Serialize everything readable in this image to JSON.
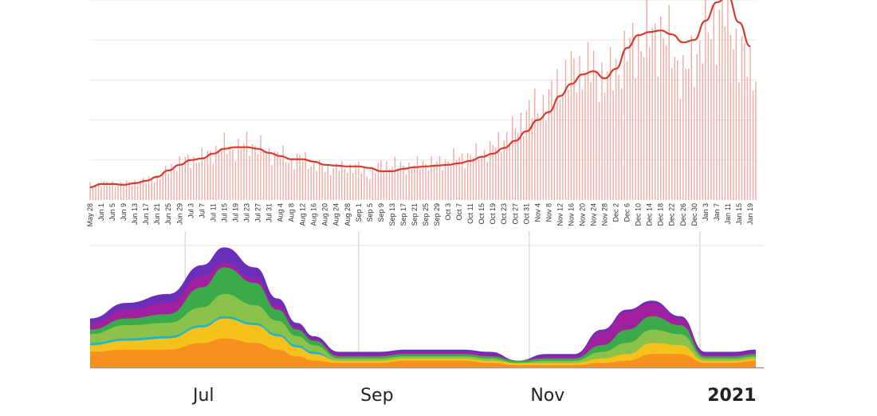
{
  "chart_data": [
    {
      "type": "bar",
      "grid": true,
      "ylim": [
        0,
        250
      ],
      "date_range": [
        "2020-05-28",
        "2021-01-21"
      ],
      "tick_labels": [
        "May 28",
        "Jun 1",
        "Jun 5",
        "Jun 9",
        "Jun 13",
        "Jun 17",
        "Jun 21",
        "Jun 25",
        "Jun 29",
        "Jul 3",
        "Jul 7",
        "Jul 11",
        "Jul 15",
        "Jul 19",
        "Jul 23",
        "Jul 27",
        "Jul 31",
        "Aug 4",
        "Aug 8",
        "Aug 12",
        "Aug 16",
        "Aug 20",
        "Aug 24",
        "Aug 28",
        "Sep 1",
        "Sep 5",
        "Sep 9",
        "Sep 13",
        "Sep 17",
        "Sep 21",
        "Sep 25",
        "Sep 29",
        "Oct 3",
        "Oct 7",
        "Oct 11",
        "Oct 15",
        "Oct 19",
        "Oct 23",
        "Oct 27",
        "Oct 31",
        "Nov 4",
        "Nov 8",
        "Nov 12",
        "Nov 16",
        "Nov 20",
        "Nov 24",
        "Nov 28",
        "Dec 2",
        "Dec 6",
        "Dec 10",
        "Dec 14",
        "Dec 18",
        "Dec 22",
        "Dec 26",
        "Dec 30",
        "Jan 3",
        "Jan 7",
        "Jan 11",
        "Jan 15",
        "Jan 19"
      ],
      "bar_color": "#f4a9a2",
      "line_color": "#d83a2c",
      "series": [
        {
          "kind": "bars",
          "x": [
            "2020-05-28",
            "2020-06-01",
            "2020-06-05",
            "2020-06-09",
            "2020-06-13",
            "2020-06-17",
            "2020-06-21",
            "2020-06-25",
            "2020-06-29",
            "2020-07-03",
            "2020-07-07",
            "2020-07-11",
            "2020-07-15",
            "2020-07-19",
            "2020-07-23",
            "2020-07-27",
            "2020-07-31",
            "2020-08-04",
            "2020-08-08",
            "2020-08-12",
            "2020-08-16",
            "2020-08-20",
            "2020-08-24",
            "2020-08-28",
            "2020-09-01",
            "2020-09-05",
            "2020-09-09",
            "2020-09-13",
            "2020-09-17",
            "2020-09-21",
            "2020-09-25",
            "2020-09-29",
            "2020-10-03",
            "2020-10-07",
            "2020-10-11",
            "2020-10-15",
            "2020-10-19",
            "2020-10-23",
            "2020-10-27",
            "2020-10-31",
            "2020-11-04",
            "2020-11-08",
            "2020-11-12",
            "2020-11-16",
            "2020-11-20",
            "2020-11-24",
            "2020-11-28",
            "2020-12-02",
            "2020-12-06",
            "2020-12-10",
            "2020-12-14",
            "2020-12-18",
            "2020-12-22",
            "2020-12-26",
            "2020-12-30",
            "2021-01-03",
            "2021-01-07",
            "2021-01-11",
            "2021-01-15",
            "2021-01-19"
          ],
          "values": [
            18,
            21,
            20,
            20,
            22,
            24,
            28,
            38,
            47,
            50,
            53,
            60,
            68,
            63,
            72,
            67,
            59,
            57,
            48,
            53,
            43,
            40,
            40,
            41,
            41,
            31,
            44,
            45,
            42,
            43,
            47,
            46,
            50,
            53,
            55,
            58,
            65,
            78,
            87,
            110,
            116,
            125,
            147,
            160,
            165,
            163,
            152,
            162,
            185,
            198,
            204,
            210,
            190,
            154,
            180,
            205,
            225,
            240,
            185,
            165
          ]
        },
        {
          "kind": "line",
          "x": [
            "2020-05-28",
            "2020-06-01",
            "2020-06-05",
            "2020-06-09",
            "2020-06-13",
            "2020-06-17",
            "2020-06-21",
            "2020-06-25",
            "2020-06-29",
            "2020-07-03",
            "2020-07-07",
            "2020-07-11",
            "2020-07-15",
            "2020-07-19",
            "2020-07-23",
            "2020-07-27",
            "2020-07-31",
            "2020-08-04",
            "2020-08-08",
            "2020-08-12",
            "2020-08-16",
            "2020-08-20",
            "2020-08-24",
            "2020-08-28",
            "2020-09-01",
            "2020-09-05",
            "2020-09-09",
            "2020-09-13",
            "2020-09-17",
            "2020-09-21",
            "2020-09-25",
            "2020-09-29",
            "2020-10-03",
            "2020-10-07",
            "2020-10-11",
            "2020-10-15",
            "2020-10-19",
            "2020-10-23",
            "2020-10-27",
            "2020-10-31",
            "2020-11-04",
            "2020-11-08",
            "2020-11-12",
            "2020-11-16",
            "2020-11-20",
            "2020-11-24",
            "2020-11-28",
            "2020-12-02",
            "2020-12-06",
            "2020-12-10",
            "2020-12-14",
            "2020-12-18",
            "2020-12-22",
            "2020-12-26",
            "2020-12-30",
            "2021-01-03",
            "2021-01-07",
            "2021-01-11",
            "2021-01-15",
            "2021-01-19"
          ],
          "values": [
            16,
            20,
            20,
            19,
            21,
            24,
            29,
            37,
            44,
            50,
            52,
            58,
            64,
            66,
            66,
            64,
            59,
            55,
            51,
            51,
            48,
            44,
            43,
            42,
            42,
            40,
            36,
            36,
            39,
            41,
            42,
            43,
            44,
            46,
            49,
            54,
            58,
            65,
            74,
            86,
            100,
            110,
            130,
            145,
            157,
            161,
            152,
            164,
            190,
            206,
            210,
            212,
            207,
            197,
            200,
            224,
            247,
            255,
            222,
            192
          ]
        }
      ]
    },
    {
      "type": "area",
      "stacked": true,
      "grid": true,
      "date_range": [
        "2020-05-28",
        "2021-01-21"
      ],
      "month_ticks": [
        "2020-07-01",
        "2020-09-01",
        "2020-11-01",
        "2021-01-01"
      ],
      "month_labels": [
        "Jul",
        "Sep",
        "Nov",
        "2021"
      ],
      "x": [
        "2020-05-28",
        "2020-06-10",
        "2020-06-25",
        "2020-07-07",
        "2020-07-15",
        "2020-07-26",
        "2020-08-03",
        "2020-08-10",
        "2020-08-16",
        "2020-08-25",
        "2020-09-08",
        "2020-09-18",
        "2020-09-28",
        "2020-10-08",
        "2020-10-18",
        "2020-10-28",
        "2020-11-07",
        "2020-11-17",
        "2020-11-27",
        "2020-12-06",
        "2020-12-15",
        "2020-12-25",
        "2021-01-03",
        "2021-01-13",
        "2021-01-21"
      ],
      "series": [
        {
          "color": "#f7901e",
          "values": [
            7,
            8,
            8,
            11,
            13,
            11,
            8,
            5,
            3,
            2,
            2,
            3,
            3,
            3,
            2,
            1,
            1,
            1,
            2,
            3,
            6,
            6,
            2,
            2,
            3
          ]
        },
        {
          "color": "#f5c21b",
          "values": [
            3,
            4,
            5,
            7,
            9,
            8,
            6,
            4,
            3,
            1,
            1,
            1,
            1,
            1,
            1,
            1,
            1,
            1,
            2,
            3,
            5,
            4,
            1,
            1,
            1
          ]
        },
        {
          "color": "#1fb4c8",
          "values": [
            1,
            1,
            1,
            1,
            1,
            1,
            1,
            1,
            1,
            0,
            0,
            0,
            0,
            0,
            0,
            0,
            0,
            0,
            0,
            0,
            0,
            0,
            0,
            0,
            0
          ]
        },
        {
          "color": "#8bc34a",
          "values": [
            4,
            6,
            6,
            8,
            10,
            8,
            6,
            4,
            3,
            1,
            1,
            1,
            1,
            1,
            1,
            0,
            1,
            1,
            3,
            5,
            6,
            5,
            1,
            1,
            1
          ]
        },
        {
          "color": "#3aaa4a",
          "values": [
            2,
            3,
            4,
            9,
            12,
            10,
            5,
            3,
            2,
            1,
            1,
            1,
            1,
            1,
            1,
            1,
            1,
            1,
            3,
            6,
            6,
            4,
            1,
            1,
            1
          ]
        },
        {
          "color": "#a020a0",
          "values": [
            3,
            4,
            5,
            5,
            2,
            2,
            2,
            1,
            1,
            1,
            1,
            1,
            1,
            1,
            1,
            0,
            1,
            1,
            6,
            8,
            6,
            3,
            1,
            1,
            1
          ]
        },
        {
          "color": "#6a2eb8",
          "values": [
            2,
            3,
            4,
            5,
            7,
            5,
            3,
            2,
            1,
            1,
            1,
            1,
            1,
            1,
            1,
            0,
            1,
            1,
            1,
            1,
            1,
            1,
            1,
            1,
            1
          ]
        }
      ]
    }
  ]
}
